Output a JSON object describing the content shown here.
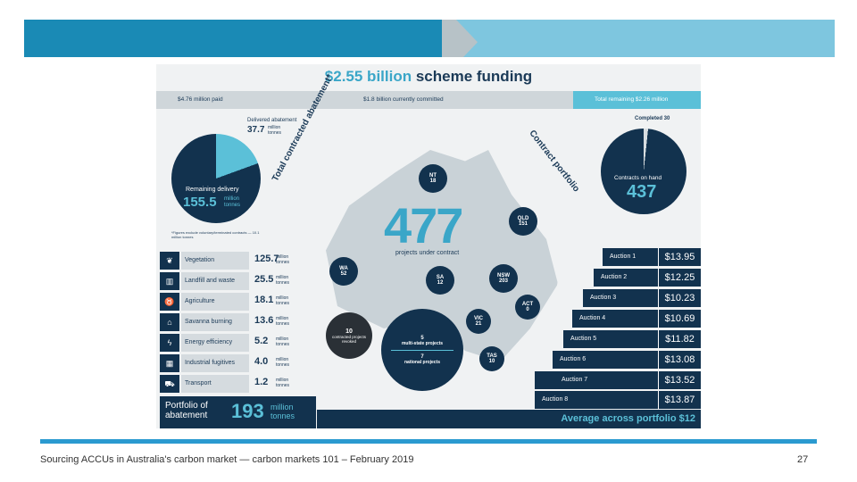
{
  "infographic": {
    "title_highlight": "$2.55 billion",
    "title_rest": " scheme funding",
    "funding": {
      "paid": "$4.76 million paid",
      "committed": "$1.8 billion currently committed",
      "remaining": "Total remaining $2.26 million"
    },
    "delivered": {
      "label": "Delivered abatement",
      "value": "37.7",
      "unit": "million tonnes"
    },
    "remaining_delivery": {
      "label": "Remaining delivery",
      "value": "155.5",
      "unit": "million tonnes"
    },
    "footnote": "*Figures exclude voluntary/terminated contracts — 10.1 million tonnes",
    "arc_left": "Total contracted abatement*",
    "arc_right": "Contract portfolio",
    "completed": "Completed 30",
    "contracts_on_hand_label": "Contracts on hand",
    "contracts_on_hand_value": "437",
    "projects_total": "477",
    "projects_label": "projects under contract",
    "states": {
      "nt": {
        "name": "NT",
        "count": "18"
      },
      "qld": {
        "name": "QLD",
        "count": "151"
      },
      "wa": {
        "name": "WA",
        "count": "52"
      },
      "sa": {
        "name": "SA",
        "count": "12"
      },
      "nsw": {
        "name": "NSW",
        "count": "203"
      },
      "act": {
        "name": "ACT",
        "count": "0"
      },
      "vic": {
        "name": "VIC",
        "count": "21"
      },
      "tas": {
        "name": "TAS",
        "count": "10"
      }
    },
    "contracted_revoked": {
      "count": "10",
      "label": "contracted projects revoked"
    },
    "multi_state": {
      "count": "5",
      "label": "multi-state projects"
    },
    "national": {
      "count": "7",
      "label": "national projects"
    },
    "sectors": [
      {
        "name": "Vegetation",
        "value": "125.7",
        "unit": "million tonnes"
      },
      {
        "name": "Landfill and waste",
        "value": "25.5",
        "unit": "million tonnes"
      },
      {
        "name": "Agriculture",
        "value": "18.1",
        "unit": "million tonnes"
      },
      {
        "name": "Savanna burning",
        "value": "13.6",
        "unit": "million tonnes"
      },
      {
        "name": "Energy efficiency",
        "value": "5.2",
        "unit": "million tonnes"
      },
      {
        "name": "Industrial fugitives",
        "value": "4.0",
        "unit": "million tonnes"
      },
      {
        "name": "Transport",
        "value": "1.2",
        "unit": "million tonnes"
      }
    ],
    "portfolio": {
      "label": "Portfolio of abatement",
      "value": "193",
      "unit": "million tonnes"
    },
    "auctions": [
      {
        "name": "Auction 1",
        "price": "$13.95"
      },
      {
        "name": "Auction 2",
        "price": "$12.25"
      },
      {
        "name": "Auction 3",
        "price": "$10.23"
      },
      {
        "name": "Auction 4",
        "price": "$10.69"
      },
      {
        "name": "Auction 5",
        "price": "$11.82"
      },
      {
        "name": "Auction 6",
        "price": "$13.08"
      },
      {
        "name": "Auction 7",
        "price": "$13.52"
      },
      {
        "name": "Auction 8",
        "price": "$13.87"
      }
    ],
    "average_label": "Average across portfolio",
    "average_value": "$12"
  },
  "footer": {
    "text": "Sourcing ACCUs in Australia's carbon market — carbon markets 101 – February 2019",
    "page": "27"
  }
}
